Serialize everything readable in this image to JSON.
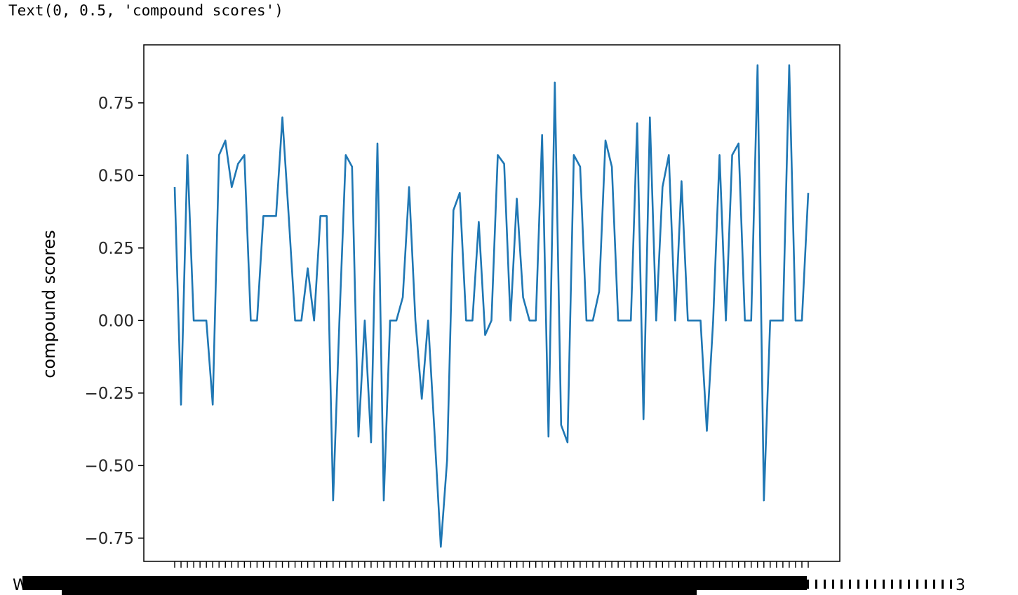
{
  "output_text": "Text(0, 0.5, 'compound scores')",
  "chart_data": {
    "type": "line",
    "ylabel": "compound scores",
    "ylim": [
      -0.83,
      0.95
    ],
    "y_ticks": [
      -0.75,
      -0.5,
      -0.25,
      0.0,
      0.25,
      0.5,
      0.75
    ],
    "y_tick_labels": [
      "−0.75",
      "−0.50",
      "−0.25",
      "0.00",
      "0.25",
      "0.50",
      "0.75"
    ],
    "x_tick_label_fragment_left": "W",
    "x_tick_label_fragment_right": "3",
    "series": [
      {
        "color": "#1f77b4",
        "values": [
          0.46,
          -0.29,
          0.57,
          0.0,
          0.0,
          0.0,
          -0.29,
          0.57,
          0.62,
          0.46,
          0.54,
          0.57,
          0.0,
          0.0,
          0.36,
          0.36,
          0.36,
          0.7,
          0.36,
          0.0,
          0.0,
          0.18,
          0.0,
          0.36,
          0.36,
          -0.62,
          0.0,
          0.57,
          0.53,
          -0.4,
          0.0,
          -0.42,
          0.61,
          -0.62,
          0.0,
          0.0,
          0.08,
          0.46,
          0.0,
          -0.27,
          0.0,
          -0.38,
          -0.78,
          -0.48,
          0.38,
          0.44,
          0.0,
          0.0,
          0.34,
          -0.05,
          0.0,
          0.57,
          0.54,
          0.0,
          0.42,
          0.08,
          0.0,
          0.0,
          0.64,
          -0.4,
          0.82,
          -0.36,
          -0.42,
          0.57,
          0.53,
          0.0,
          0.0,
          0.1,
          0.62,
          0.53,
          0.0,
          0.0,
          0.0,
          0.68,
          -0.34,
          0.7,
          0.0,
          0.46,
          0.57,
          0.0,
          0.48,
          0.0,
          0.0,
          0.0,
          -0.38,
          0.0,
          0.57,
          0.0,
          0.57,
          0.61,
          0.0,
          0.0,
          0.88,
          -0.62,
          0.0,
          0.0,
          0.0,
          0.88,
          0.0,
          0.0,
          0.44
        ]
      }
    ]
  }
}
